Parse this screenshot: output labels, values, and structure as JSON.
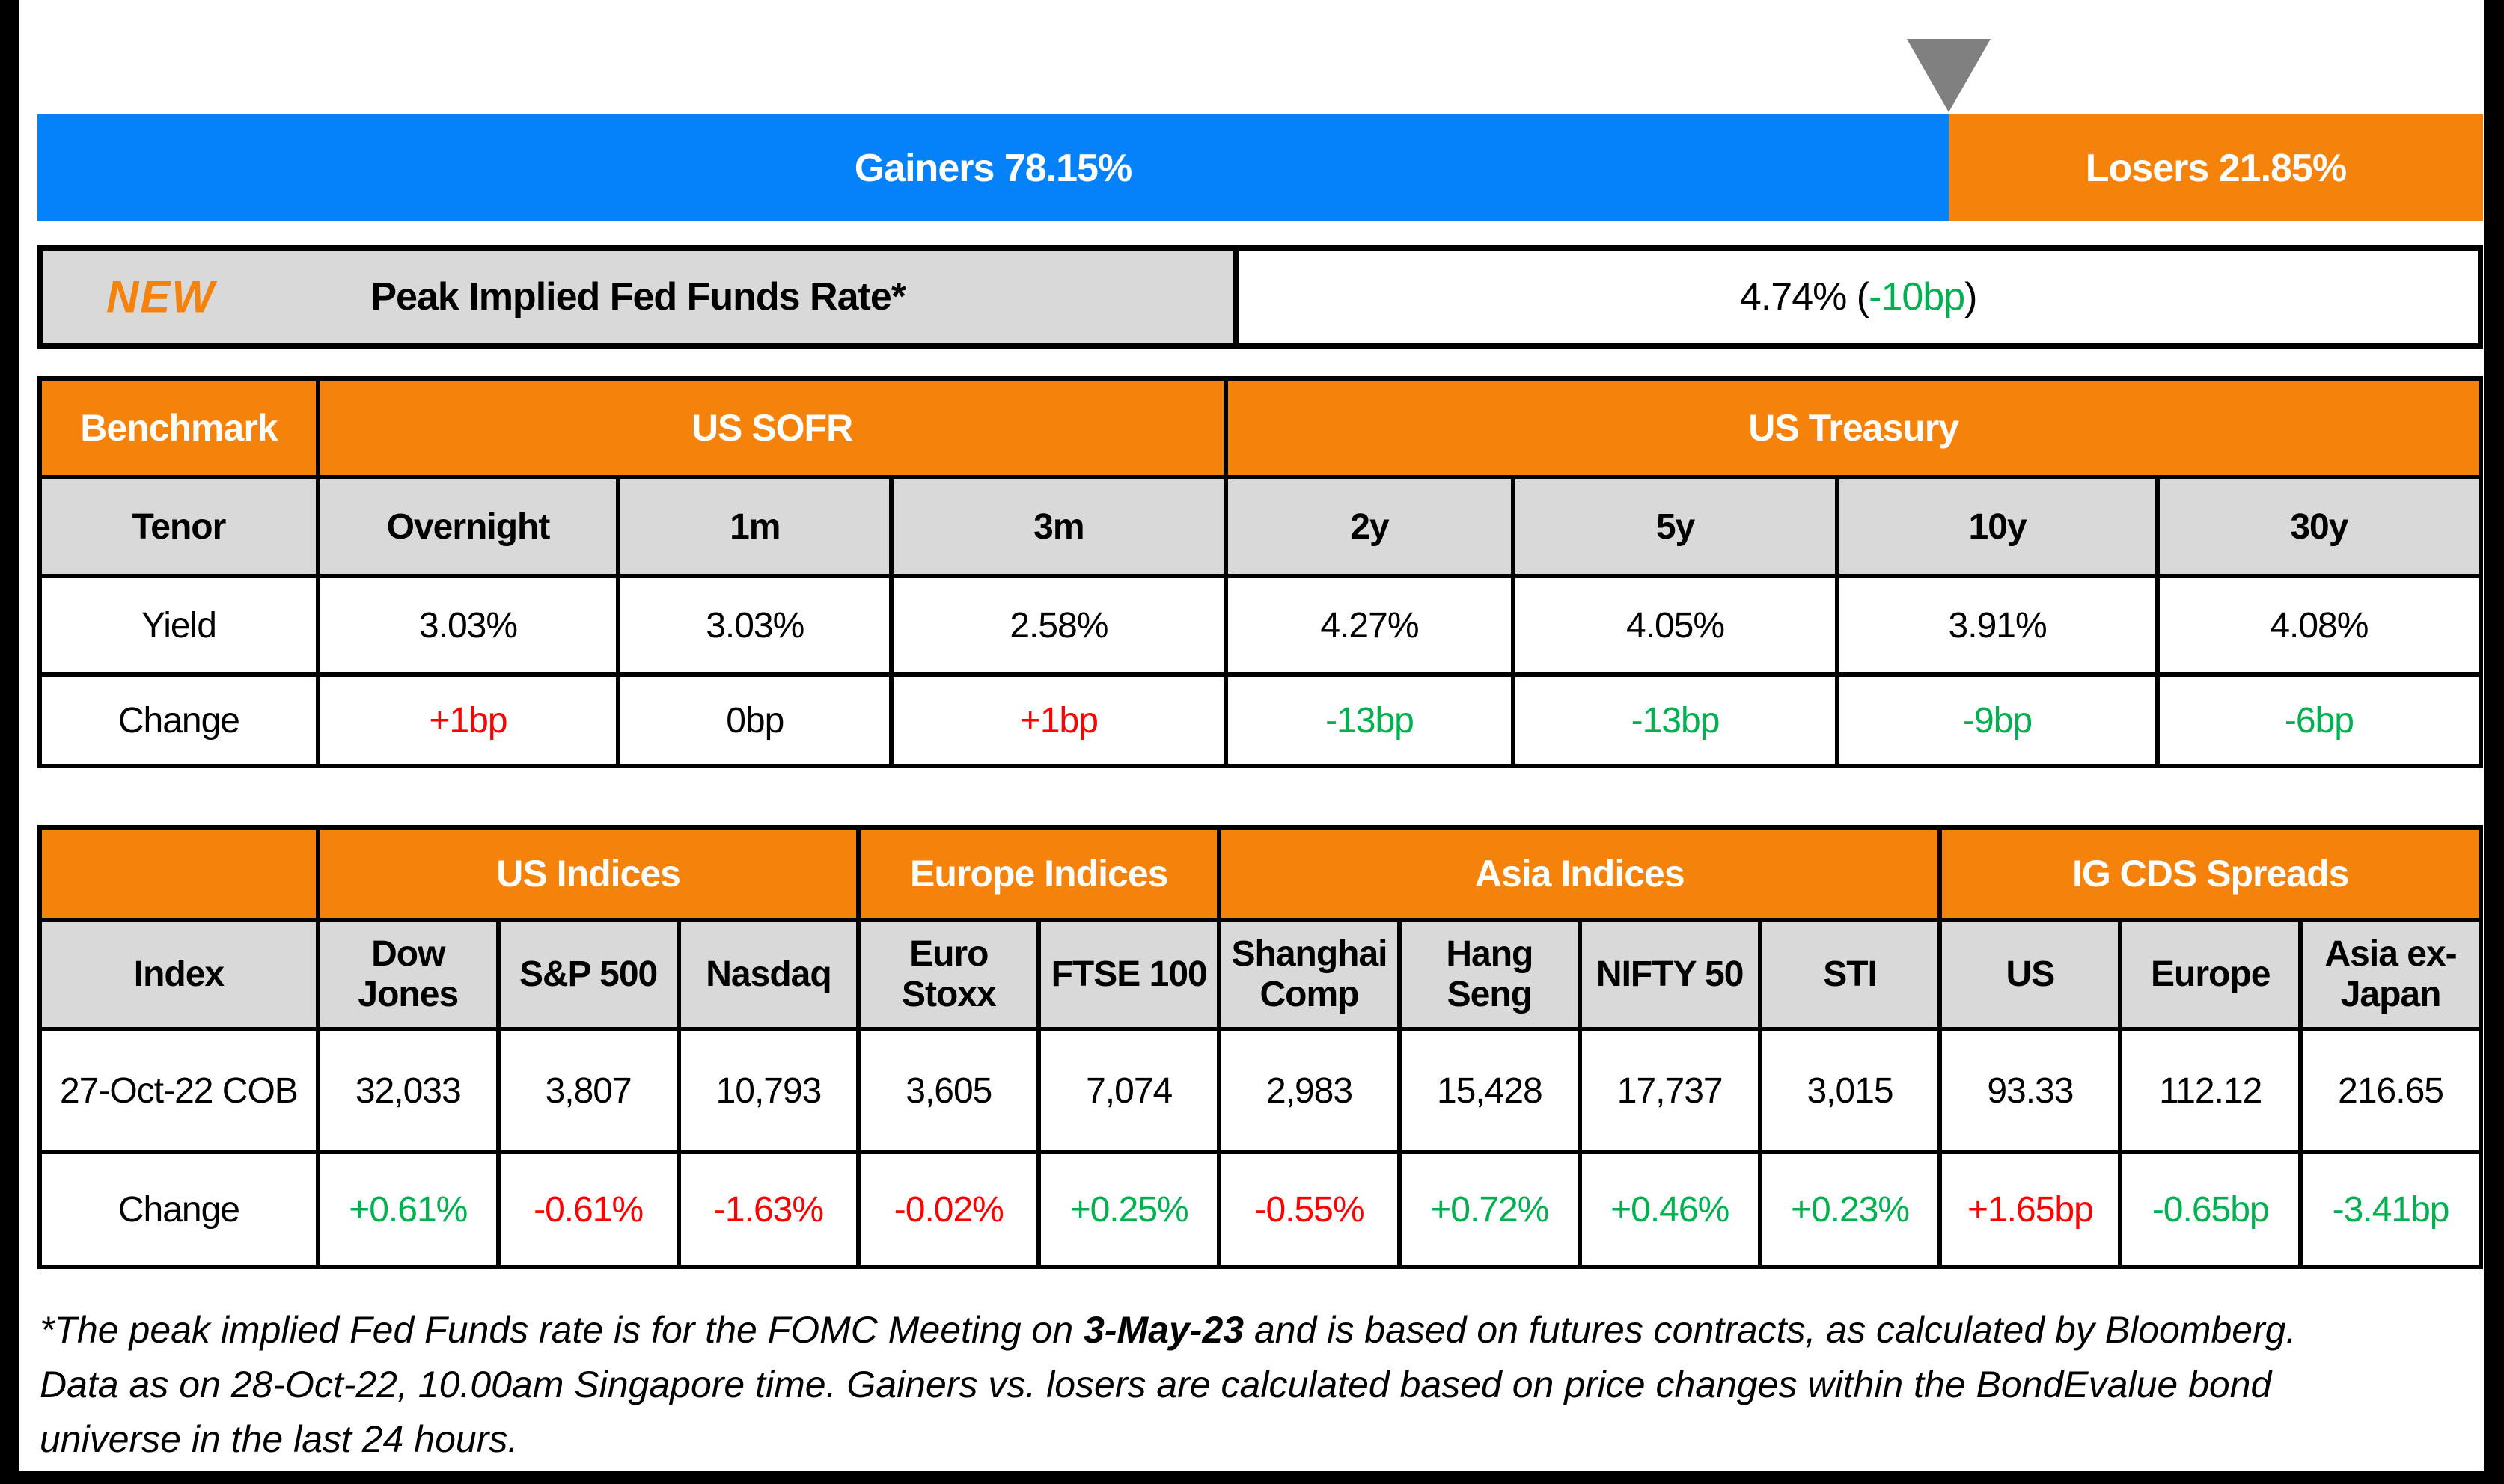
{
  "colors": {
    "blue": "#0582FA",
    "orange": "#F5820A",
    "gray_cell": "#D9D9D9",
    "triangle_gray": "#808080",
    "positive_green": "#00B050",
    "negative_red": "#FF0000",
    "text_black": "#000000",
    "bar_text_white": "#FFFFFF"
  },
  "gainers_losers_bar": {
    "gainers_label": "Gainers 78.15%",
    "losers_label": "Losers 21.85%",
    "gainers_pct": 78.15,
    "losers_pct": 21.85
  },
  "chart_data": {
    "type": "bar",
    "title": "Gainers vs Losers",
    "categories": [
      "Gainers",
      "Losers"
    ],
    "values": [
      78.15,
      21.85
    ],
    "orientation": "horizontal-stacked",
    "colors": [
      "#0582FA",
      "#F5820A"
    ]
  },
  "peak_rate_row": {
    "badge": "NEW",
    "label": "Peak Implied Fed Funds Rate*",
    "value_prefix": "4.74% (",
    "value_change": "-10bp",
    "value_suffix": ")"
  },
  "benchmark_table": {
    "corner_label": "Benchmark",
    "groups": [
      {
        "label": "US SOFR",
        "span": 3
      },
      {
        "label": "US Treasury",
        "span": 4
      }
    ],
    "row_labels": {
      "tenor": "Tenor",
      "yield": "Yield",
      "change": "Change"
    },
    "columns": [
      {
        "tenor": "Overnight",
        "yield": "3.03%",
        "change": "+1bp",
        "change_color": "red"
      },
      {
        "tenor": "1m",
        "yield": "3.03%",
        "change": "0bp",
        "change_color": "black"
      },
      {
        "tenor": "3m",
        "yield": "2.58%",
        "change": "+1bp",
        "change_color": "red"
      },
      {
        "tenor": "2y",
        "yield": "4.27%",
        "change": "-13bp",
        "change_color": "green"
      },
      {
        "tenor": "5y",
        "yield": "4.05%",
        "change": "-13bp",
        "change_color": "green"
      },
      {
        "tenor": "10y",
        "yield": "3.91%",
        "change": "-9bp",
        "change_color": "green"
      },
      {
        "tenor": "30y",
        "yield": "4.08%",
        "change": "-6bp",
        "change_color": "green"
      }
    ]
  },
  "indices_table": {
    "corner_label": "",
    "groups": [
      {
        "label": "US Indices",
        "span": 3
      },
      {
        "label": "Europe Indices",
        "span": 2
      },
      {
        "label": "Asia Indices",
        "span": 4
      },
      {
        "label": "IG CDS Spreads",
        "span": 3
      }
    ],
    "row_labels": {
      "index": "Index",
      "date": "27-Oct-22 COB",
      "change": "Change"
    },
    "columns": [
      {
        "name": "Dow\nJones",
        "value": "32,033",
        "change": "+0.61%",
        "change_color": "green"
      },
      {
        "name": "S&P 500",
        "value": "3,807",
        "change": "-0.61%",
        "change_color": "red"
      },
      {
        "name": "Nasdaq",
        "value": "10,793",
        "change": "-1.63%",
        "change_color": "red"
      },
      {
        "name": "Euro\nStoxx",
        "value": "3,605",
        "change": "-0.02%",
        "change_color": "red"
      },
      {
        "name": "FTSE 100",
        "value": "7,074",
        "change": "+0.25%",
        "change_color": "green"
      },
      {
        "name": "Shanghai\nComp",
        "value": "2,983",
        "change": "-0.55%",
        "change_color": "red"
      },
      {
        "name": "Hang\nSeng",
        "value": "15,428",
        "change": "+0.72%",
        "change_color": "green"
      },
      {
        "name": "NIFTY 50",
        "value": "17,737",
        "change": "+0.46%",
        "change_color": "green"
      },
      {
        "name": "STI",
        "value": "3,015",
        "change": "+0.23%",
        "change_color": "green"
      },
      {
        "name": "US",
        "value": "93.33",
        "change": "+1.65bp",
        "change_color": "red"
      },
      {
        "name": "Europe",
        "value": "112.12",
        "change": "-0.65bp",
        "change_color": "green"
      },
      {
        "name": "Asia ex-\nJapan",
        "value": "216.65",
        "change": "-3.41bp",
        "change_color": "green"
      }
    ]
  },
  "footnote": {
    "part1": "*The peak implied Fed Funds rate is for the FOMC Meeting on ",
    "bold_date": "3-May-23",
    "part2": " and is based on futures contracts, as calculated by Bloomberg. Data as on 28-Oct-22, 10.00am Singapore time. Gainers vs. losers are calculated based on price changes within the BondEvalue bond universe in the last 24 hours."
  }
}
